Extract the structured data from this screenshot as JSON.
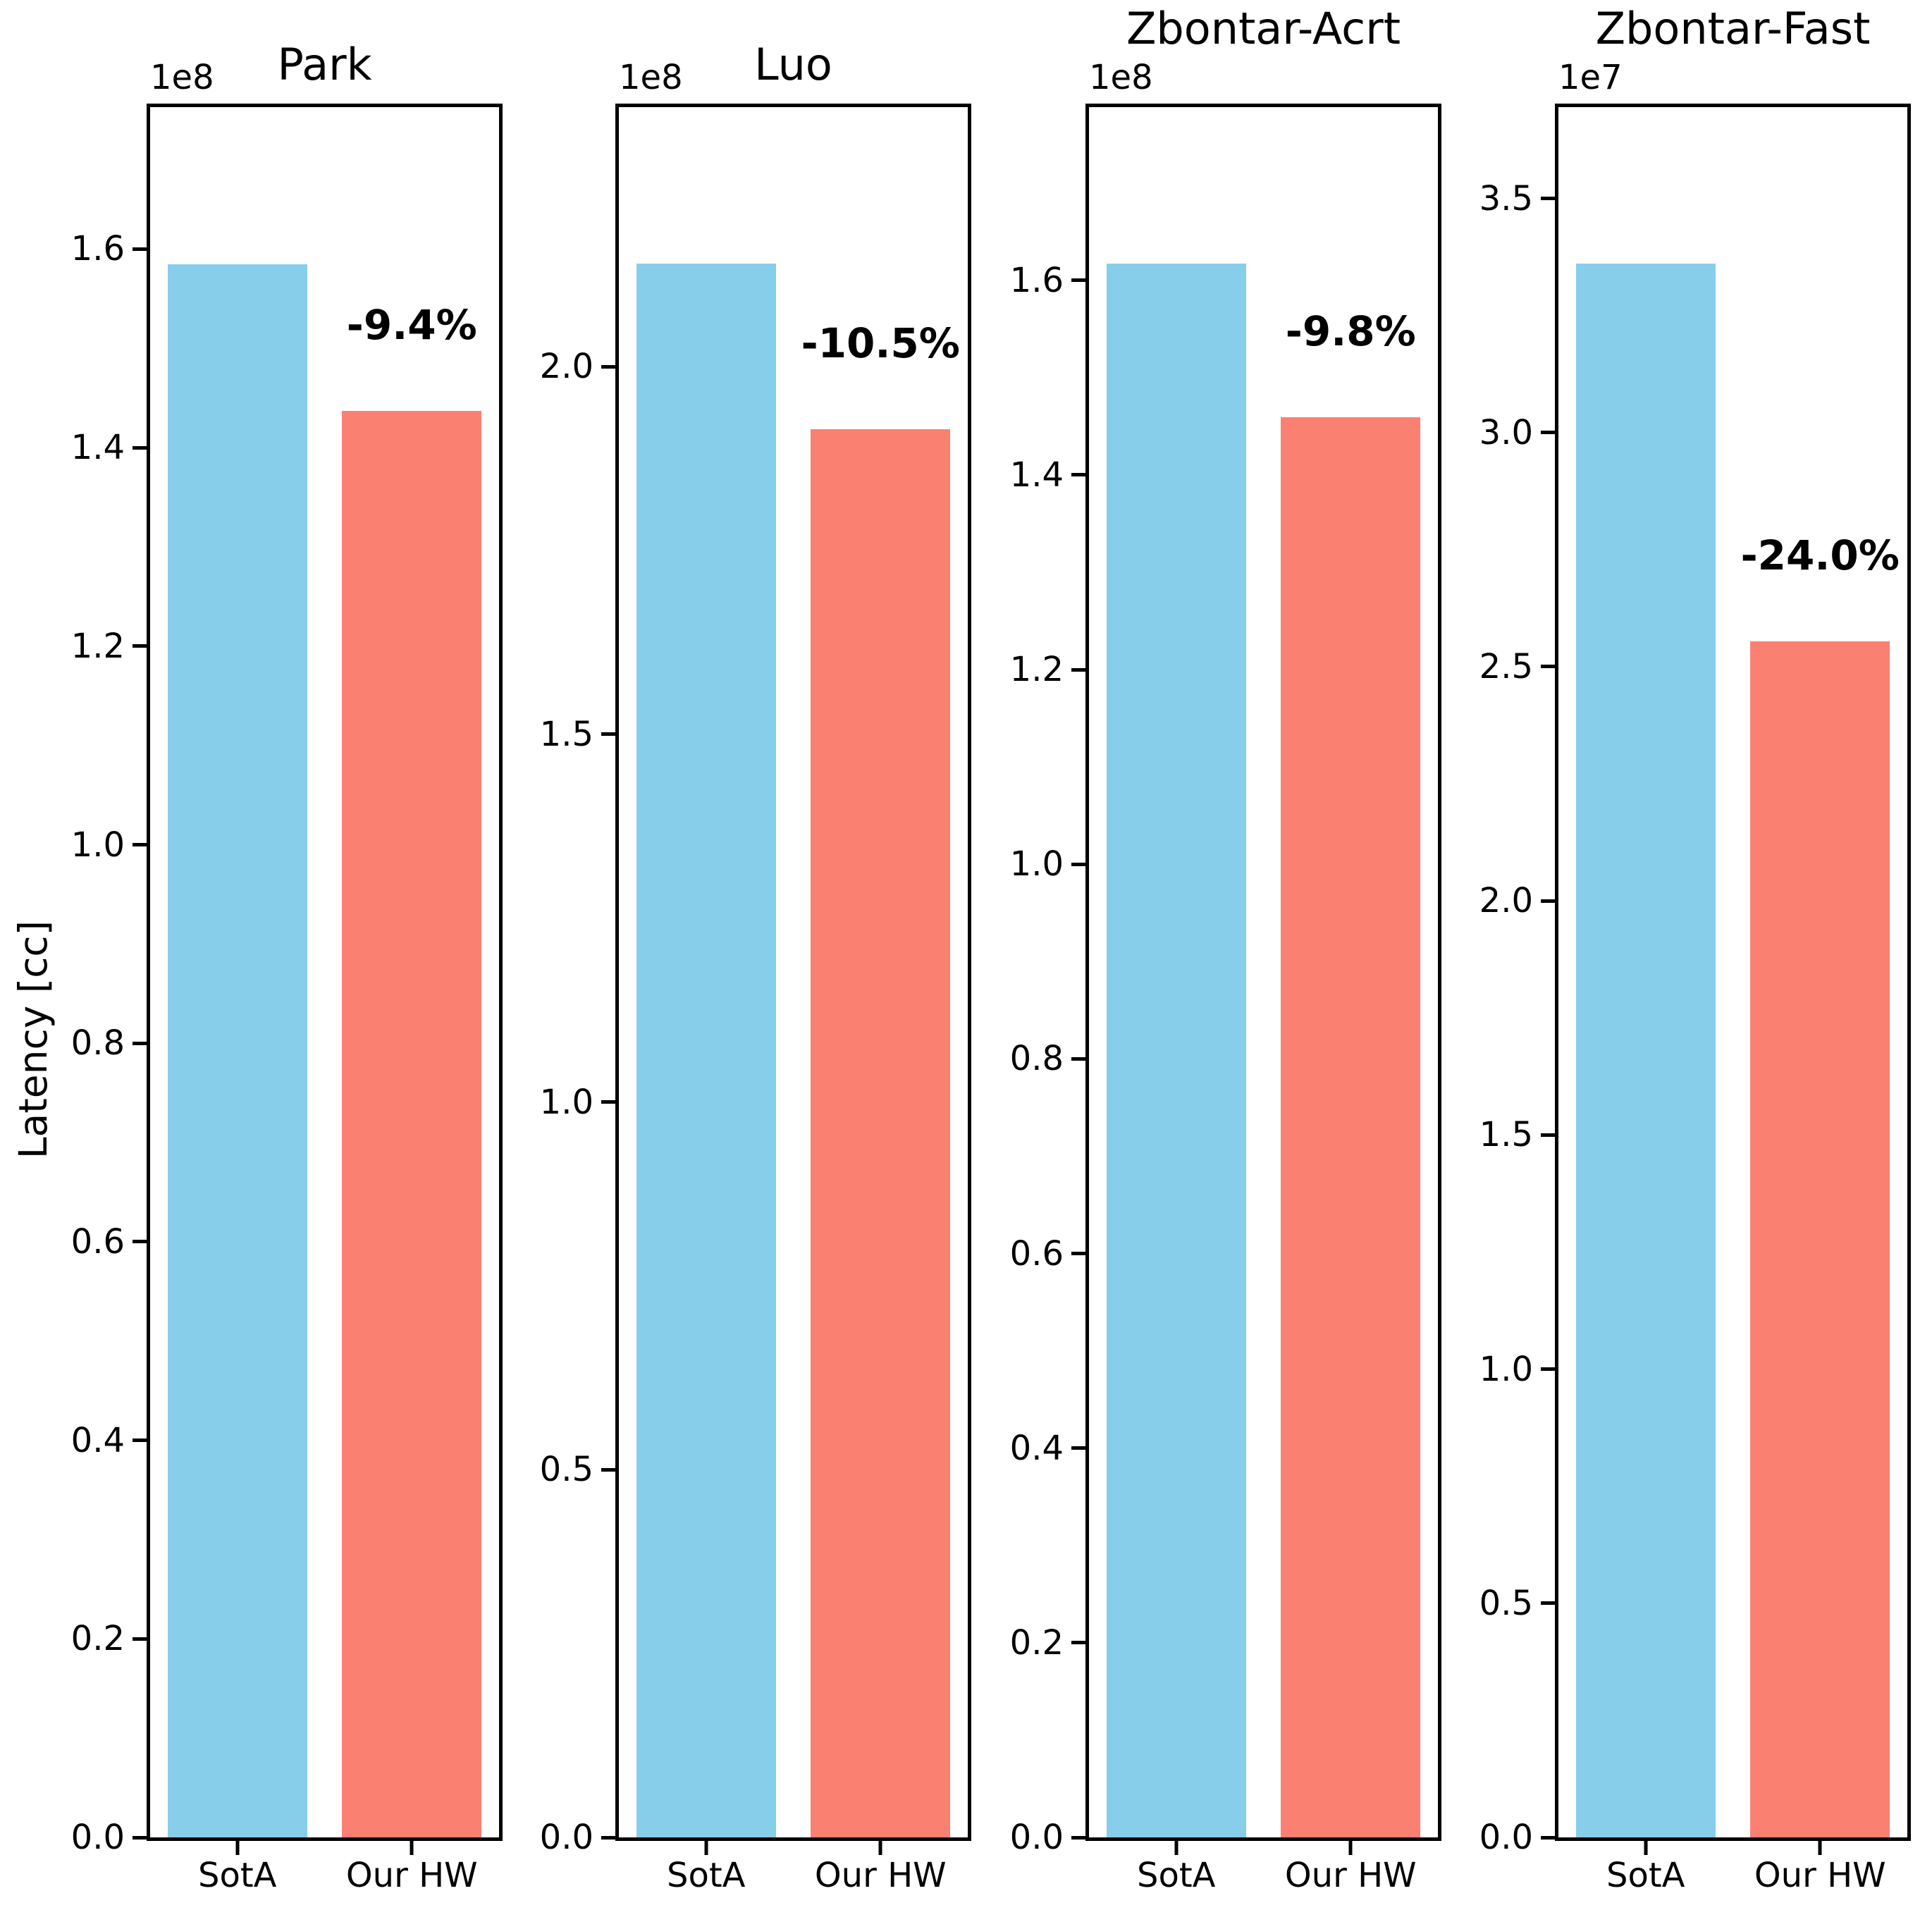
{
  "figure": {
    "ylabel": "Latency [cc]",
    "categories": [
      "SotA",
      "Our HW"
    ],
    "colors": {
      "sota_bar": "#87CEEB",
      "our_hw_bar": "#FA8072",
      "axis": "#000000",
      "background": "#FFFFFF"
    }
  },
  "chart_data": [
    {
      "type": "bar",
      "title": "Park",
      "offset_text": "1e8",
      "categories": [
        "SotA",
        "Our HW"
      ],
      "series": [
        {
          "name": "SotA",
          "values": [
            158500000
          ]
        },
        {
          "name": "Our HW",
          "values": [
            143700000
          ]
        }
      ],
      "values": [
        158500000,
        143700000
      ],
      "annotation": "-9.4%",
      "ylabel": "Latency [cc]",
      "ylim": [
        0,
        174300000
      ],
      "yticks": [
        0,
        20000000,
        40000000,
        60000000,
        80000000,
        100000000,
        120000000,
        140000000,
        160000000
      ],
      "ytick_labels": [
        "0.0",
        "0.2",
        "0.4",
        "0.6",
        "0.8",
        "1.0",
        "1.2",
        "1.4",
        "1.6"
      ],
      "title_raised": false,
      "grid": false,
      "legend": "none"
    },
    {
      "type": "bar",
      "title": "Luo",
      "offset_text": "1e8",
      "categories": [
        "SotA",
        "Our HW"
      ],
      "series": [
        {
          "name": "SotA",
          "values": [
            214000000
          ]
        },
        {
          "name": "Our HW",
          "values": [
            191500000
          ]
        }
      ],
      "values": [
        214000000,
        191500000
      ],
      "annotation": "-10.5%",
      "ylabel": "Latency [cc]",
      "ylim": [
        0,
        235300000
      ],
      "yticks": [
        0,
        50000000,
        100000000,
        150000000,
        200000000
      ],
      "ytick_labels": [
        "0.0",
        "0.5",
        "1.0",
        "1.5",
        "2.0"
      ],
      "title_raised": false,
      "grid": false,
      "legend": "none"
    },
    {
      "type": "bar",
      "title": "Zbontar-Acrt",
      "offset_text": "1e8",
      "categories": [
        "SotA",
        "Our HW"
      ],
      "series": [
        {
          "name": "SotA",
          "values": [
            161700000
          ]
        },
        {
          "name": "Our HW",
          "values": [
            145900000
          ]
        }
      ],
      "values": [
        161700000,
        145900000
      ],
      "annotation": "-9.8%",
      "ylabel": "Latency [cc]",
      "ylim": [
        0,
        177800000
      ],
      "yticks": [
        0,
        20000000,
        40000000,
        60000000,
        80000000,
        100000000,
        120000000,
        140000000,
        160000000
      ],
      "ytick_labels": [
        "0.0",
        "0.2",
        "0.4",
        "0.6",
        "0.8",
        "1.0",
        "1.2",
        "1.4",
        "1.6"
      ],
      "title_raised": true,
      "grid": false,
      "legend": "none"
    },
    {
      "type": "bar",
      "title": "Zbontar-Fast",
      "offset_text": "1e7",
      "categories": [
        "SotA",
        "Our HW"
      ],
      "series": [
        {
          "name": "SotA",
          "values": [
            33610000
          ]
        },
        {
          "name": "Our HW",
          "values": [
            25540000
          ]
        }
      ],
      "values": [
        33610000,
        25540000
      ],
      "annotation": "-24.0%",
      "ylabel": "Latency [cc]",
      "ylim": [
        0,
        36950000
      ],
      "yticks": [
        0,
        5000000,
        10000000,
        15000000,
        20000000,
        25000000,
        30000000,
        35000000
      ],
      "ytick_labels": [
        "0.0",
        "0.5",
        "1.0",
        "1.5",
        "2.0",
        "2.5",
        "3.0",
        "3.5"
      ],
      "title_raised": true,
      "grid": false,
      "legend": "none"
    }
  ]
}
